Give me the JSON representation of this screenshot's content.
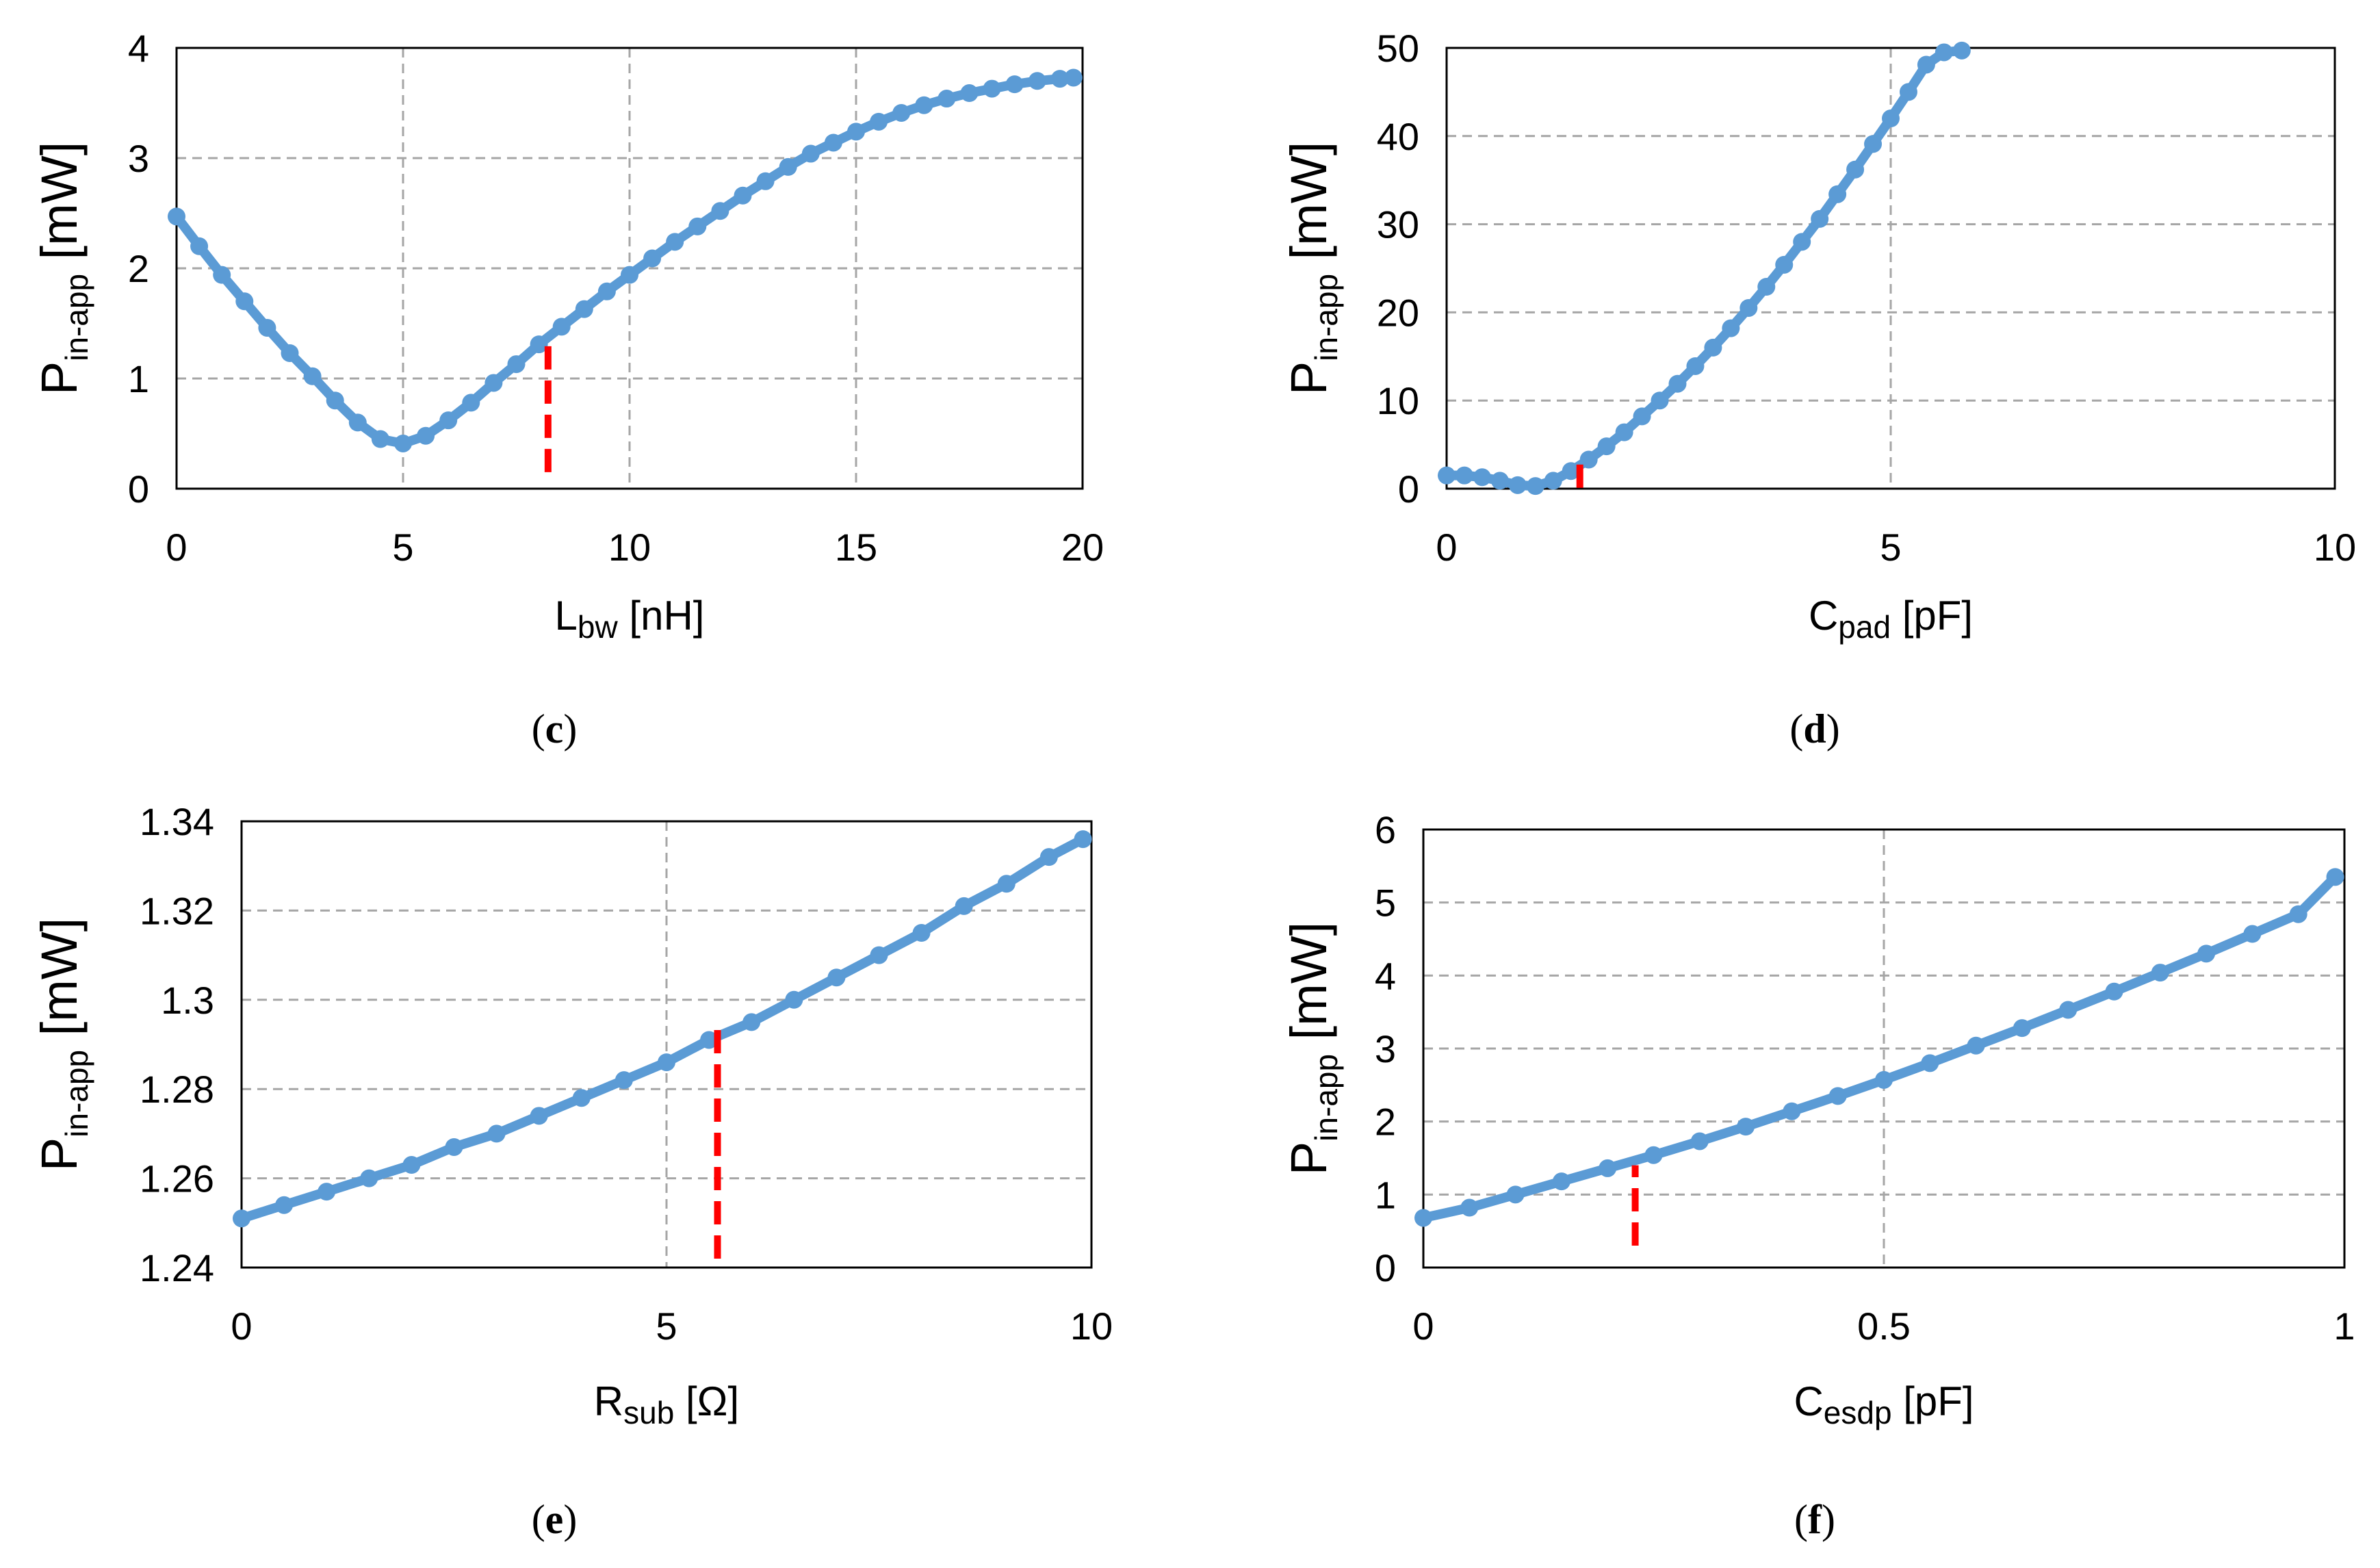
{
  "chart_data": [
    {
      "type": "scatter",
      "panel": "c",
      "xlabel_main": "L",
      "xlabel_sub": "bw",
      "xlabel_unit": " [nH]",
      "ylabel_main": "P",
      "ylabel_sub": "in-app",
      "ylabel_unit": " [mW]",
      "xlim": [
        0,
        20
      ],
      "ylim": [
        0,
        4
      ],
      "xticks": [
        0,
        5,
        10,
        15,
        20
      ],
      "xtick_labels": [
        "0",
        "5",
        "10",
        "15",
        "20"
      ],
      "yticks": [
        0,
        1,
        2,
        3,
        4
      ],
      "ytick_labels": [
        "0",
        "1",
        "2",
        "3",
        "4"
      ],
      "grid": true,
      "series": [
        {
          "name": "Pin-app",
          "color": "#5b9bd5",
          "x": [
            0,
            0.5,
            1,
            1.5,
            2,
            2.5,
            3,
            3.5,
            4,
            4.5,
            5,
            5.5,
            6,
            6.5,
            7,
            7.5,
            8,
            8.5,
            9,
            9.5,
            10,
            10.5,
            11,
            11.5,
            12,
            12.5,
            13,
            13.5,
            14,
            14.5,
            15,
            15.5,
            16,
            16.5,
            17,
            17.5,
            18,
            18.5,
            19,
            19.5,
            19.8
          ],
          "y": [
            2.47,
            2.2,
            1.94,
            1.7,
            1.46,
            1.23,
            1.02,
            0.8,
            0.6,
            0.45,
            0.41,
            0.48,
            0.62,
            0.78,
            0.96,
            1.13,
            1.31,
            1.47,
            1.63,
            1.79,
            1.94,
            2.09,
            2.24,
            2.38,
            2.52,
            2.66,
            2.79,
            2.92,
            3.04,
            3.14,
            3.24,
            3.33,
            3.41,
            3.48,
            3.54,
            3.59,
            3.63,
            3.67,
            3.7,
            3.72,
            3.73
          ]
        }
      ],
      "marker_x": 8.2,
      "marker_y_range": [
        0.15,
        1.35
      ],
      "marker_color": "#ff0000"
    },
    {
      "type": "scatter",
      "panel": "d",
      "xlabel_main": "C",
      "xlabel_sub": "pad",
      "xlabel_unit": " [pF]",
      "ylabel_main": "P",
      "ylabel_sub": "in-app",
      "ylabel_unit": " [mW]",
      "xlim": [
        0,
        10
      ],
      "ylim": [
        0,
        50
      ],
      "xticks": [
        0,
        5,
        10
      ],
      "xtick_labels": [
        "0",
        "5",
        "10"
      ],
      "yticks": [
        0,
        10,
        20,
        30,
        40,
        50
      ],
      "ytick_labels": [
        "0",
        "10",
        "20",
        "30",
        "40",
        "50"
      ],
      "grid": true,
      "series": [
        {
          "name": "Pin-app",
          "color": "#5b9bd5",
          "x": [
            0,
            0.2,
            0.4,
            0.6,
            0.8,
            1.0,
            1.2,
            1.4,
            1.6,
            1.8,
            2.0,
            2.2,
            2.4,
            2.6,
            2.8,
            3.0,
            3.2,
            3.4,
            3.6,
            3.8,
            4.0,
            4.2,
            4.4,
            4.6,
            4.8,
            5.0,
            5.2,
            5.4,
            5.6,
            5.8
          ],
          "y": [
            1.5,
            1.5,
            1.3,
            0.9,
            0.4,
            0.3,
            0.9,
            2.0,
            3.3,
            4.8,
            6.4,
            8.2,
            10.0,
            11.9,
            13.9,
            16.0,
            18.2,
            20.5,
            22.9,
            25.4,
            28.0,
            30.6,
            33.4,
            36.2,
            39.1,
            42.0,
            45.0,
            48.1,
            49.5,
            49.7
          ]
        }
      ],
      "marker_x": 1.5,
      "marker_y_range": [
        0.1,
        3.0
      ],
      "marker_color": "#ff0000"
    },
    {
      "type": "scatter",
      "panel": "e",
      "xlabel_main": "R",
      "xlabel_sub": "sub",
      "xlabel_unit": " [Ω]",
      "ylabel_main": "P",
      "ylabel_sub": "in-app",
      "ylabel_unit": " [mW]",
      "xlim": [
        0,
        10
      ],
      "ylim": [
        1.24,
        1.34
      ],
      "xticks": [
        0,
        5,
        10
      ],
      "xtick_labels": [
        "0",
        "5",
        "10"
      ],
      "yticks": [
        1.24,
        1.26,
        1.28,
        1.3,
        1.32,
        1.34
      ],
      "ytick_labels": [
        "1.24",
        "1.26",
        "1.28",
        "1.3",
        "1.32",
        "1.34"
      ],
      "grid": true,
      "series": [
        {
          "name": "Pin-app",
          "color": "#5b9bd5",
          "x": [
            0,
            0.5,
            1,
            1.5,
            2,
            2.5,
            3,
            3.5,
            4,
            4.5,
            5,
            5.5,
            6,
            6.5,
            7,
            7.5,
            8,
            8.5,
            9,
            9.5,
            9.9
          ],
          "y": [
            1.251,
            1.254,
            1.257,
            1.26,
            1.263,
            1.267,
            1.27,
            1.274,
            1.278,
            1.282,
            1.286,
            1.291,
            1.295,
            1.3,
            1.305,
            1.31,
            1.315,
            1.321,
            1.326,
            1.332,
            1.336
          ]
        }
      ],
      "marker_x": 5.6,
      "marker_y_range": [
        1.242,
        1.294
      ],
      "marker_color": "#ff0000"
    },
    {
      "type": "scatter",
      "panel": "f",
      "xlabel_main": "C",
      "xlabel_sub": "esdp",
      "xlabel_unit": " [pF]",
      "ylabel_main": "P",
      "ylabel_sub": "in-app",
      "ylabel_unit": " [mW]",
      "xlim": [
        0,
        1
      ],
      "ylim": [
        0,
        6
      ],
      "xticks": [
        0,
        0.5,
        1
      ],
      "xtick_labels": [
        "0",
        "0.5",
        "1"
      ],
      "yticks": [
        0,
        1,
        2,
        3,
        4,
        5,
        6
      ],
      "ytick_labels": [
        "0",
        "1",
        "2",
        "3",
        "4",
        "5",
        "6"
      ],
      "grid": true,
      "series": [
        {
          "name": "Pin-app",
          "color": "#5b9bd5",
          "x": [
            0,
            0.05,
            0.1,
            0.15,
            0.2,
            0.25,
            0.3,
            0.35,
            0.4,
            0.45,
            0.5,
            0.55,
            0.6,
            0.65,
            0.7,
            0.75,
            0.8,
            0.85,
            0.9,
            0.95,
            0.99
          ],
          "y": [
            0.68,
            0.82,
            1.0,
            1.18,
            1.36,
            1.54,
            1.73,
            1.93,
            2.14,
            2.35,
            2.57,
            2.8,
            3.04,
            3.28,
            3.53,
            3.78,
            4.04,
            4.3,
            4.57,
            4.84,
            5.35
          ]
        }
      ],
      "marker_x": 0.23,
      "marker_y_range": [
        0.3,
        1.4
      ],
      "marker_color": "#ff0000"
    }
  ]
}
